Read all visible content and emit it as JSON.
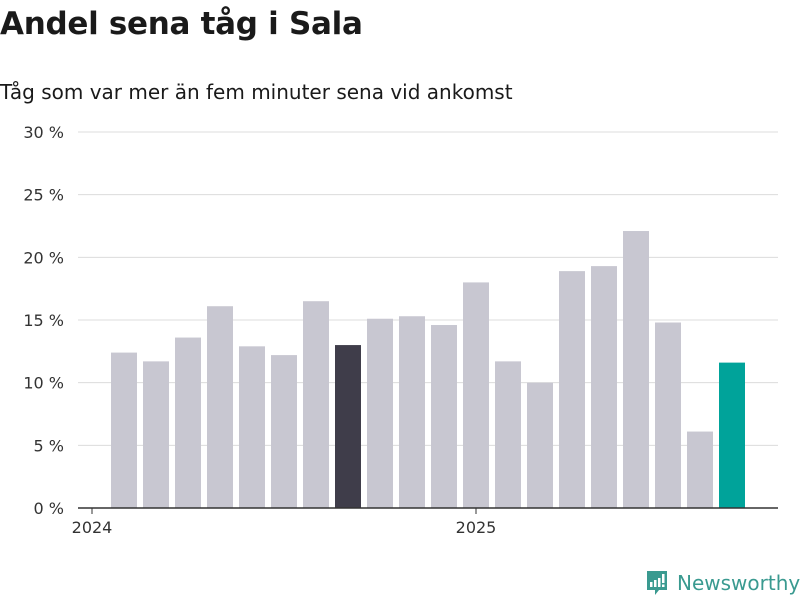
{
  "header": {
    "title": "Andel sena tåg i Sala",
    "subtitle": "Tåg som var mer än fem minuter sena vid ankomst"
  },
  "brand": {
    "name": "Newsworthy",
    "color": "#3a9a90"
  },
  "colors": {
    "default": "#c8c7d1",
    "highlight_dark": "#3f3d4a",
    "highlight_latest": "#00a39a"
  },
  "chart_data": {
    "type": "bar",
    "title": "Andel sena tåg i Sala",
    "ylabel": "",
    "xlabel": "",
    "ylim": [
      0,
      30
    ],
    "yticks": [
      0,
      5,
      10,
      15,
      20,
      25,
      30
    ],
    "ytick_labels": [
      "0 %",
      "5 %",
      "10 %",
      "15 %",
      "20 %",
      "25 %",
      "30 %"
    ],
    "xtick_labels": [
      {
        "label": "2024",
        "index": 0
      },
      {
        "label": "2025",
        "index": 12
      }
    ],
    "categories": [
      "2024-01",
      "2024-02",
      "2024-03",
      "2024-04",
      "2024-05",
      "2024-06",
      "2024-07",
      "2024-08",
      "2024-09",
      "2024-10",
      "2024-11",
      "2024-12",
      "2025-01",
      "2025-02",
      "2025-03",
      "2025-04",
      "2025-05",
      "2025-06",
      "2025-07",
      "2025-08"
    ],
    "values": [
      12.4,
      11.7,
      13.6,
      16.1,
      12.9,
      12.2,
      16.5,
      13.0,
      15.1,
      15.3,
      14.6,
      18.0,
      11.7,
      10.0,
      18.9,
      19.3,
      22.1,
      14.8,
      6.1,
      11.6
    ],
    "highlight": {
      "7": "dark",
      "19": "latest"
    },
    "grid": true
  }
}
